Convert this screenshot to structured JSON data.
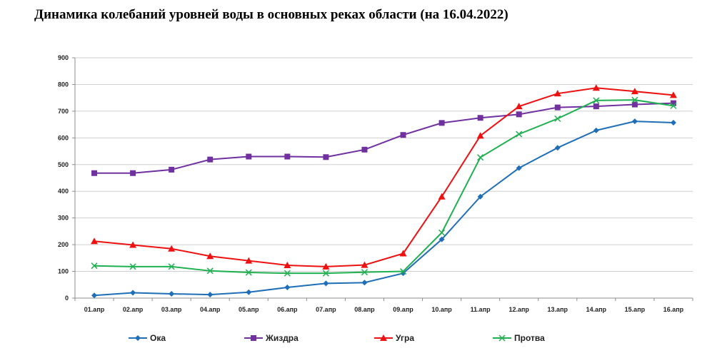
{
  "chart_data": {
    "type": "line",
    "title": "Динамика колебаний уровней воды в основных реках области (на 16.04.2022)",
    "categories": [
      "01.апр",
      "02.апр",
      "03.апр",
      "04.апр",
      "05.апр",
      "06.апр",
      "07.апр",
      "08.апр",
      "09.апр",
      "10.апр",
      "11.апр",
      "12.апр",
      "13.апр",
      "14.апр",
      "15.апр",
      "16.апр"
    ],
    "ylim": [
      0,
      900
    ],
    "yticks": [
      "0",
      "100",
      "200",
      "300",
      "400",
      "500",
      "600",
      "700",
      "800",
      "900"
    ],
    "grid": true,
    "legend": "bottom",
    "series": [
      {
        "name": "Ока",
        "color": "#1f6fb8",
        "marker": "diamond",
        "values": [
          10,
          20,
          16,
          13,
          22,
          40,
          55,
          58,
          93,
          220,
          380,
          487,
          563,
          628,
          662,
          657
        ]
      },
      {
        "name": "Жиздра",
        "color": "#7030a0",
        "marker": "square",
        "values": [
          468,
          468,
          481,
          519,
          530,
          530,
          528,
          556,
          611,
          656,
          675,
          688,
          714,
          718,
          725,
          730
        ]
      },
      {
        "name": "Угра",
        "color": "#ee1111",
        "marker": "triangle",
        "values": [
          213,
          199,
          185,
          157,
          140,
          123,
          118,
          124,
          167,
          380,
          608,
          718,
          766,
          787,
          774,
          760
        ]
      },
      {
        "name": "Протва",
        "color": "#1fb050",
        "marker": "x",
        "values": [
          121,
          118,
          118,
          102,
          96,
          93,
          93,
          97,
          100,
          245,
          527,
          614,
          672,
          740,
          742,
          720
        ]
      }
    ]
  }
}
